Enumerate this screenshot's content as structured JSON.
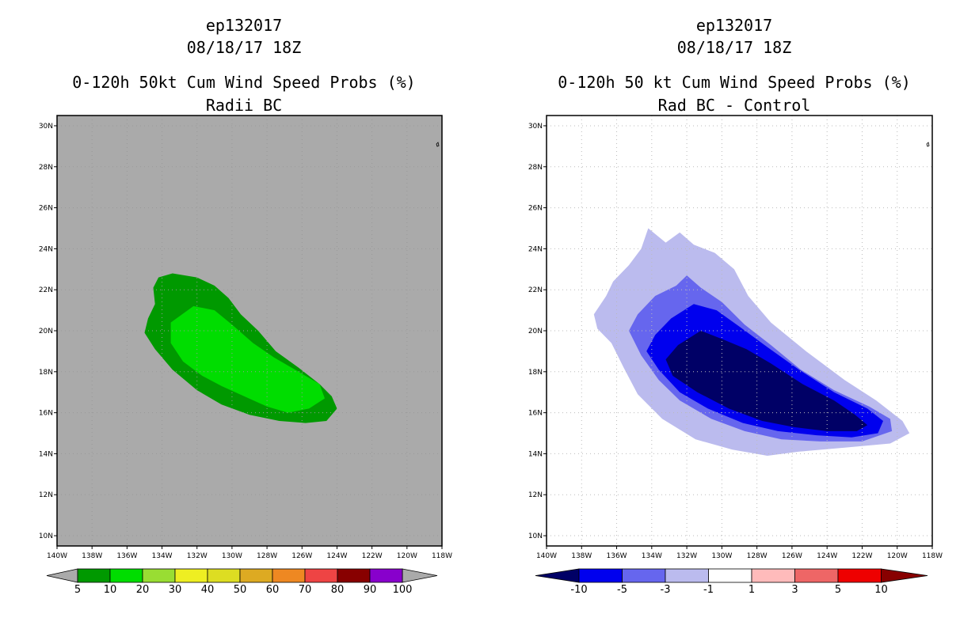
{
  "chart_data": [
    {
      "type": "heatmap",
      "storm_id": "ep132017",
      "date": "08/18/17 18Z",
      "title": "0-120h 50kt Cum Wind Speed Probs (%)",
      "subtitle": "Radii BC",
      "x_ticks": [
        "140W",
        "138W",
        "136W",
        "134W",
        "132W",
        "130W",
        "128W",
        "126W",
        "124W",
        "122W",
        "120W",
        "118W"
      ],
      "y_ticks": [
        "10N",
        "12N",
        "14N",
        "16N",
        "18N",
        "20N",
        "22N",
        "24N",
        "26N",
        "28N",
        "30N"
      ],
      "xlim": [
        -140,
        -118
      ],
      "ylim": [
        9.5,
        30.5
      ],
      "background_color": "#aaaaaa",
      "colorbar_labels": [
        "5",
        "10",
        "20",
        "30",
        "40",
        "50",
        "60",
        "70",
        "80",
        "90",
        "100"
      ],
      "colorbar_colors": [
        "#009900",
        "#00dd00",
        "#99dd33",
        "#eeee22",
        "#dddd22",
        "#ddaa22",
        "#ee8822",
        "#ee4444",
        "#880000",
        "#8800cc"
      ],
      "contours": [
        {
          "level": "5-10",
          "color": "#009900",
          "points": [
            [
              -134.2,
              22.6
            ],
            [
              -133.4,
              22.8
            ],
            [
              -132.0,
              22.6
            ],
            [
              -131.0,
              22.2
            ],
            [
              -130.2,
              21.6
            ],
            [
              -129.5,
              20.8
            ],
            [
              -128.5,
              20.0
            ],
            [
              -127.5,
              19.0
            ],
            [
              -126.2,
              18.2
            ],
            [
              -125.0,
              17.4
            ],
            [
              -124.3,
              16.8
            ],
            [
              -124.0,
              16.2
            ],
            [
              -124.6,
              15.6
            ],
            [
              -125.8,
              15.5
            ],
            [
              -127.3,
              15.6
            ],
            [
              -129.0,
              15.9
            ],
            [
              -130.6,
              16.4
            ],
            [
              -132.0,
              17.1
            ],
            [
              -133.4,
              18.1
            ],
            [
              -134.4,
              19.1
            ],
            [
              -135.0,
              19.9
            ],
            [
              -134.8,
              20.6
            ],
            [
              -134.4,
              21.3
            ],
            [
              -134.5,
              22.1
            ]
          ]
        },
        {
          "level": "10-20",
          "color": "#00dd00",
          "points": [
            [
              -133.5,
              20.4
            ],
            [
              -132.2,
              21.2
            ],
            [
              -131.0,
              21.0
            ],
            [
              -130.0,
              20.3
            ],
            [
              -128.8,
              19.4
            ],
            [
              -127.6,
              18.7
            ],
            [
              -126.2,
              18.0
            ],
            [
              -125.0,
              17.4
            ],
            [
              -124.7,
              16.7
            ],
            [
              -125.6,
              16.2
            ],
            [
              -126.8,
              16.0
            ],
            [
              -128.0,
              16.3
            ],
            [
              -129.3,
              16.8
            ],
            [
              -130.6,
              17.3
            ],
            [
              -131.7,
              17.8
            ],
            [
              -132.8,
              18.5
            ],
            [
              -133.5,
              19.4
            ]
          ]
        }
      ]
    },
    {
      "type": "heatmap",
      "storm_id": "ep132017",
      "date": "08/18/17 18Z",
      "title": "0-120h 50 kt Cum Wind Speed Probs (%)",
      "subtitle": "Rad BC - Control",
      "x_ticks": [
        "140W",
        "138W",
        "136W",
        "134W",
        "132W",
        "130W",
        "128W",
        "126W",
        "124W",
        "122W",
        "120W",
        "118W"
      ],
      "y_ticks": [
        "10N",
        "12N",
        "14N",
        "16N",
        "18N",
        "20N",
        "22N",
        "24N",
        "26N",
        "28N",
        "30N"
      ],
      "xlim": [
        -140,
        -118
      ],
      "ylim": [
        9.5,
        30.5
      ],
      "background_color": "#ffffff",
      "colorbar_labels": [
        "-10",
        "-5",
        "-3",
        "-1",
        "1",
        "3",
        "5",
        "10"
      ],
      "colorbar_colors": [
        "#000066",
        "#0000ee",
        "#6666ee",
        "#bbbbee",
        "#ffffff",
        "#ffbbbb",
        "#ee6666",
        "#ee0000",
        "#880000"
      ],
      "contours": [
        {
          "level": "-3 to -1",
          "color": "#bbbbee",
          "points": [
            [
              -134.2,
              25.0
            ],
            [
              -133.2,
              24.3
            ],
            [
              -132.4,
              24.8
            ],
            [
              -131.6,
              24.2
            ],
            [
              -130.4,
              23.8
            ],
            [
              -129.3,
              23.0
            ],
            [
              -128.5,
              21.7
            ],
            [
              -127.2,
              20.4
            ],
            [
              -125.2,
              19.0
            ],
            [
              -123.0,
              17.6
            ],
            [
              -121.2,
              16.6
            ],
            [
              -119.7,
              15.6
            ],
            [
              -119.3,
              15.0
            ],
            [
              -120.4,
              14.5
            ],
            [
              -123.0,
              14.3
            ],
            [
              -125.6,
              14.1
            ],
            [
              -127.4,
              13.9
            ],
            [
              -129.4,
              14.2
            ],
            [
              -131.5,
              14.7
            ],
            [
              -133.4,
              15.7
            ],
            [
              -134.8,
              16.9
            ],
            [
              -135.6,
              18.2
            ],
            [
              -136.3,
              19.4
            ],
            [
              -137.1,
              20.1
            ],
            [
              -137.3,
              20.8
            ],
            [
              -136.6,
              21.7
            ],
            [
              -136.2,
              22.4
            ],
            [
              -135.3,
              23.2
            ],
            [
              -134.6,
              24.0
            ]
          ]
        },
        {
          "level": "-5 to -3",
          "color": "#6666ee",
          "points": [
            [
              -132.0,
              22.7
            ],
            [
              -131.2,
              22.1
            ],
            [
              -130.0,
              21.4
            ],
            [
              -128.7,
              20.3
            ],
            [
              -127.2,
              19.3
            ],
            [
              -125.5,
              18.1
            ],
            [
              -123.6,
              17.1
            ],
            [
              -121.6,
              16.3
            ],
            [
              -120.4,
              15.7
            ],
            [
              -120.3,
              15.1
            ],
            [
              -122.0,
              14.6
            ],
            [
              -124.4,
              14.6
            ],
            [
              -126.6,
              14.7
            ],
            [
              -128.7,
              15.1
            ],
            [
              -130.6,
              15.7
            ],
            [
              -132.4,
              16.6
            ],
            [
              -133.6,
              17.6
            ],
            [
              -134.6,
              18.8
            ],
            [
              -135.3,
              20.0
            ],
            [
              -134.8,
              20.8
            ],
            [
              -133.8,
              21.7
            ],
            [
              -132.6,
              22.2
            ]
          ]
        },
        {
          "level": "-10 to -5",
          "color": "#0000ee",
          "points": [
            [
              -131.6,
              21.3
            ],
            [
              -130.3,
              21.0
            ],
            [
              -129.0,
              20.2
            ],
            [
              -127.4,
              19.2
            ],
            [
              -125.6,
              18.1
            ],
            [
              -123.6,
              17.0
            ],
            [
              -121.7,
              16.2
            ],
            [
              -120.8,
              15.6
            ],
            [
              -121.1,
              15.0
            ],
            [
              -122.6,
              14.8
            ],
            [
              -124.6,
              14.9
            ],
            [
              -126.8,
              15.1
            ],
            [
              -128.8,
              15.5
            ],
            [
              -130.8,
              16.2
            ],
            [
              -132.4,
              17.0
            ],
            [
              -133.6,
              18.1
            ],
            [
              -134.3,
              19.0
            ],
            [
              -133.8,
              19.8
            ],
            [
              -132.9,
              20.6
            ]
          ]
        },
        {
          "level": "< -10",
          "color": "#000066",
          "points": [
            [
              -131.2,
              20.0
            ],
            [
              -130.0,
              19.6
            ],
            [
              -128.6,
              19.1
            ],
            [
              -127.2,
              18.4
            ],
            [
              -125.4,
              17.4
            ],
            [
              -123.6,
              16.6
            ],
            [
              -122.4,
              15.9
            ],
            [
              -121.7,
              15.4
            ],
            [
              -122.3,
              15.1
            ],
            [
              -124.0,
              15.1
            ],
            [
              -125.9,
              15.3
            ],
            [
              -127.7,
              15.6
            ],
            [
              -129.6,
              16.2
            ],
            [
              -131.4,
              17.0
            ],
            [
              -132.8,
              17.8
            ],
            [
              -133.2,
              18.6
            ],
            [
              -132.5,
              19.3
            ]
          ]
        }
      ]
    }
  ]
}
